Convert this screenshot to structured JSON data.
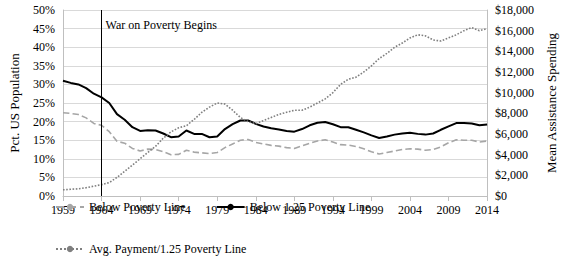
{
  "chart_data": {
    "type": "line",
    "x": [
      1959,
      1960,
      1961,
      1962,
      1963,
      1964,
      1965,
      1966,
      1967,
      1968,
      1969,
      1970,
      1971,
      1972,
      1973,
      1974,
      1975,
      1976,
      1977,
      1978,
      1979,
      1980,
      1981,
      1982,
      1983,
      1984,
      1985,
      1986,
      1987,
      1988,
      1989,
      1990,
      1991,
      1992,
      1993,
      1994,
      1995,
      1996,
      1997,
      1998,
      1999,
      2000,
      2001,
      2002,
      2003,
      2004,
      2005,
      2006,
      2007,
      2008,
      2009,
      2010,
      2011,
      2012,
      2013,
      2014
    ],
    "xlim": [
      1959,
      2014
    ],
    "xticks": [
      1959,
      1964,
      1969,
      1974,
      1979,
      1984,
      1989,
      1994,
      1999,
      2004,
      2009,
      2014
    ],
    "y_label": "Pct. US Population",
    "y2_label": "Mean Assistance Spending",
    "ylim": [
      0,
      50
    ],
    "yticks": [
      {
        "value": 0,
        "label": "0%"
      },
      {
        "value": 5,
        "label": "5%"
      },
      {
        "value": 10,
        "label": "10%"
      },
      {
        "value": 15,
        "label": "15%"
      },
      {
        "value": 20,
        "label": "20%"
      },
      {
        "value": 25,
        "label": "25%"
      },
      {
        "value": 30,
        "label": "30%"
      },
      {
        "value": 35,
        "label": "35%"
      },
      {
        "value": 40,
        "label": "40%"
      },
      {
        "value": 45,
        "label": "45%"
      },
      {
        "value": 50,
        "label": "50%"
      }
    ],
    "y2lim": [
      0,
      18000
    ],
    "y2ticks": [
      {
        "value": 0,
        "label": "$0"
      },
      {
        "value": 2000,
        "label": "$2,000"
      },
      {
        "value": 4000,
        "label": "$4,000"
      },
      {
        "value": 6000,
        "label": "$6,000"
      },
      {
        "value": 8000,
        "label": "$8,000"
      },
      {
        "value": 10000,
        "label": "$10,000"
      },
      {
        "value": 12000,
        "label": "$12,000"
      },
      {
        "value": 14000,
        "label": "$14,000"
      },
      {
        "value": 16000,
        "label": "$16,000"
      },
      {
        "value": 18000,
        "label": "$18,000"
      }
    ],
    "grid": true,
    "legend": "bottom",
    "annotations": [
      {
        "text": "War on Poverty Begins",
        "x": 1964,
        "y": 46
      }
    ],
    "series": [
      {
        "name": "Below Poverty Line",
        "color": "#a6a6a6",
        "line_style": "dashed",
        "values": [
          22.4,
          22.2,
          21.9,
          21.0,
          19.5,
          19.0,
          17.3,
          14.7,
          14.2,
          12.8,
          12.1,
          12.6,
          12.5,
          11.9,
          11.1,
          11.2,
          12.3,
          11.8,
          11.6,
          11.4,
          11.7,
          13.0,
          14.0,
          15.0,
          15.2,
          14.4,
          14.0,
          13.6,
          13.4,
          13.0,
          12.8,
          13.5,
          14.2,
          14.8,
          15.1,
          14.5,
          13.8,
          13.7,
          13.3,
          12.7,
          11.9,
          11.3,
          11.7,
          12.1,
          12.5,
          12.7,
          12.6,
          12.3,
          12.5,
          13.2,
          14.3,
          15.1,
          15.0,
          15.0,
          14.5,
          14.8
        ]
      },
      {
        "name": "Below 1.25 Poverty Line",
        "color": "#000000",
        "line_style": "solid",
        "values": [
          31.0,
          30.4,
          30.0,
          29.0,
          27.5,
          26.5,
          25.0,
          22.0,
          20.5,
          18.5,
          17.5,
          17.7,
          17.6,
          16.8,
          15.8,
          16.0,
          17.6,
          16.7,
          16.7,
          15.8,
          16.0,
          18.0,
          19.3,
          20.3,
          20.3,
          19.4,
          18.7,
          18.2,
          17.9,
          17.5,
          17.3,
          18.0,
          19.0,
          19.7,
          19.9,
          19.3,
          18.5,
          18.5,
          17.8,
          17.1,
          16.3,
          15.6,
          16.0,
          16.5,
          16.8,
          17.0,
          16.7,
          16.5,
          16.8,
          17.8,
          18.7,
          19.6,
          19.6,
          19.5,
          19.0,
          19.2
        ]
      },
      {
        "name": "Avg. Payment/1.25 Poverty Line",
        "color": "#7f7f7f",
        "line_style": "dotted",
        "axis": "y2",
        "values": [
          600,
          650,
          700,
          800,
          950,
          1100,
          1300,
          1800,
          2400,
          3000,
          3600,
          4200,
          4800,
          5600,
          6200,
          6600,
          6800,
          7400,
          8100,
          8600,
          9000,
          8900,
          8300,
          7600,
          7200,
          7000,
          7300,
          7600,
          7900,
          8100,
          8300,
          8300,
          8600,
          9000,
          9400,
          10000,
          10800,
          11300,
          11500,
          12000,
          12600,
          13300,
          13800,
          14400,
          14800,
          15300,
          15600,
          15500,
          15100,
          15000,
          15300,
          15600,
          16000,
          16300,
          16000,
          16200
        ]
      }
    ]
  }
}
